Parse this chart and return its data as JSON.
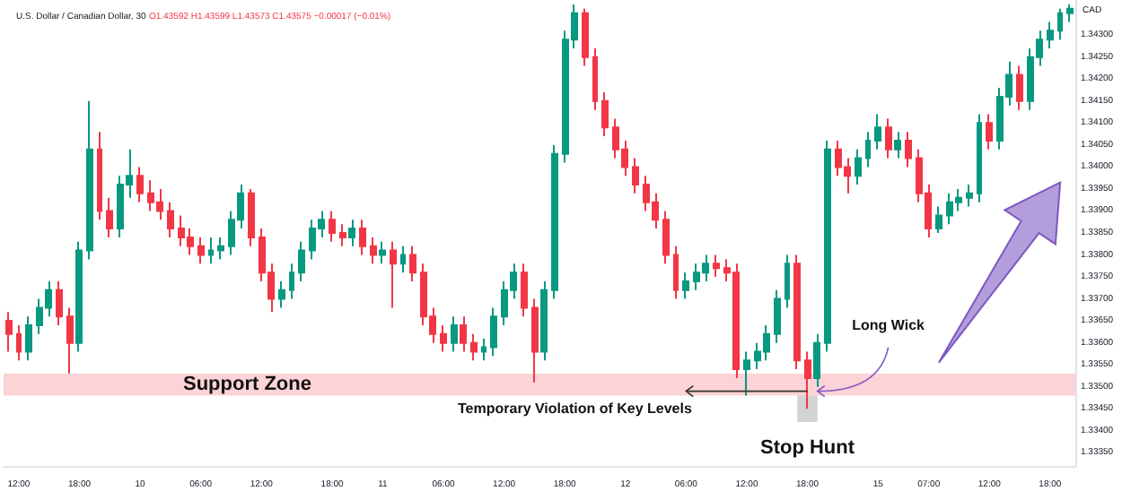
{
  "chart_data": {
    "type": "candlestick",
    "title": "U.S. Dollar / Canadian Dollar, 30",
    "subtitle": "O1.43592 H1.43599 L1.43573 C1.43575 −0.00017 (−0.01%)",
    "annotations": [
      "CAD",
      {
        "text": "Temporary Violation of Key Levels",
        "y": 1.3349
      },
      "Stop Hunt",
      "Long Wick"
    ],
    "categories": [
      null,
      "12:00",
      null,
      null,
      null,
      null,
      null,
      "18:00",
      null,
      null,
      null,
      null,
      null,
      "10",
      null,
      null,
      null,
      null,
      null,
      "06:00",
      null,
      null,
      null,
      null,
      null,
      "12:00",
      null,
      null,
      null,
      null,
      null,
      null,
      "18:00",
      null,
      null,
      null,
      null,
      "11",
      null,
      null,
      null,
      null,
      null,
      "06:00",
      null,
      null,
      null,
      null,
      null,
      "12:00",
      null,
      null,
      null,
      null,
      null,
      "18:00",
      null,
      null,
      null,
      null,
      null,
      "12",
      null,
      null,
      null,
      null,
      null,
      "06:00",
      null,
      null,
      null,
      null,
      null,
      "12:00",
      null,
      null,
      null,
      null,
      null,
      "18:00",
      null,
      null,
      null,
      null,
      null,
      null,
      "15",
      null,
      null,
      null,
      null,
      "07:00",
      null,
      null,
      null,
      null,
      null,
      "12:00",
      null,
      null,
      null,
      null,
      null,
      "18:00",
      null,
      null
    ],
    "ohlc": [
      [
        1.3365,
        1.3367,
        1.3358,
        1.3362
      ],
      [
        1.3362,
        1.3364,
        1.3356,
        1.3358
      ],
      [
        1.3358,
        1.3366,
        1.3356,
        1.3364
      ],
      [
        1.3364,
        1.337,
        1.3362,
        1.3368
      ],
      [
        1.3368,
        1.3374,
        1.3366,
        1.3372
      ],
      [
        1.3372,
        1.3374,
        1.3364,
        1.3366
      ],
      [
        1.3366,
        1.3368,
        1.3353,
        1.336
      ],
      [
        1.336,
        1.3383,
        1.3358,
        1.3381
      ],
      [
        1.3381,
        1.3415,
        1.3379,
        1.3404
      ],
      [
        1.3404,
        1.3408,
        1.3388,
        1.339
      ],
      [
        1.339,
        1.3393,
        1.3384,
        1.3386
      ],
      [
        1.3386,
        1.3398,
        1.3384,
        1.3396
      ],
      [
        1.3396,
        1.3404,
        1.3393,
        1.3398
      ],
      [
        1.3398,
        1.34,
        1.3392,
        1.3394
      ],
      [
        1.3394,
        1.3397,
        1.339,
        1.3392
      ],
      [
        1.3392,
        1.3395,
        1.3388,
        1.339
      ],
      [
        1.339,
        1.3392,
        1.3384,
        1.3386
      ],
      [
        1.3386,
        1.3389,
        1.3382,
        1.3384
      ],
      [
        1.3384,
        1.3386,
        1.338,
        1.3382
      ],
      [
        1.3382,
        1.3384,
        1.3378,
        1.338
      ],
      [
        1.338,
        1.3384,
        1.3378,
        1.3381
      ],
      [
        1.3381,
        1.3384,
        1.3379,
        1.3382
      ],
      [
        1.3382,
        1.339,
        1.338,
        1.3388
      ],
      [
        1.3388,
        1.3396,
        1.3386,
        1.3394
      ],
      [
        1.3394,
        1.3395,
        1.3382,
        1.3384
      ],
      [
        1.3384,
        1.3386,
        1.3374,
        1.3376
      ],
      [
        1.3376,
        1.3378,
        1.3367,
        1.337
      ],
      [
        1.337,
        1.3374,
        1.3368,
        1.3372
      ],
      [
        1.3372,
        1.3378,
        1.337,
        1.3376
      ],
      [
        1.3376,
        1.3383,
        1.3374,
        1.3381
      ],
      [
        1.3381,
        1.3388,
        1.3379,
        1.3386
      ],
      [
        1.3386,
        1.339,
        1.3384,
        1.3388
      ],
      [
        1.3388,
        1.339,
        1.3383,
        1.3385
      ],
      [
        1.3385,
        1.3387,
        1.3382,
        1.3384
      ],
      [
        1.3384,
        1.3388,
        1.3382,
        1.3386
      ],
      [
        1.3386,
        1.3388,
        1.338,
        1.3382
      ],
      [
        1.3382,
        1.3384,
        1.3378,
        1.338
      ],
      [
        1.338,
        1.3383,
        1.3378,
        1.3381
      ],
      [
        1.3381,
        1.3383,
        1.3368,
        1.3378
      ],
      [
        1.3378,
        1.3382,
        1.3376,
        1.338
      ],
      [
        1.338,
        1.3382,
        1.3374,
        1.3376
      ],
      [
        1.3376,
        1.3378,
        1.3364,
        1.3366
      ],
      [
        1.3366,
        1.3368,
        1.336,
        1.3362
      ],
      [
        1.3362,
        1.3364,
        1.3358,
        1.336
      ],
      [
        1.336,
        1.3366,
        1.3358,
        1.3364
      ],
      [
        1.3364,
        1.3366,
        1.3358,
        1.336
      ],
      [
        1.336,
        1.3362,
        1.3356,
        1.3358
      ],
      [
        1.3358,
        1.3361,
        1.3356,
        1.3359
      ],
      [
        1.3359,
        1.3368,
        1.3357,
        1.3366
      ],
      [
        1.3366,
        1.3374,
        1.3364,
        1.3372
      ],
      [
        1.3372,
        1.3378,
        1.337,
        1.3376
      ],
      [
        1.3376,
        1.3378,
        1.3366,
        1.3368
      ],
      [
        1.3368,
        1.337,
        1.3351,
        1.3358
      ],
      [
        1.3358,
        1.3374,
        1.3356,
        1.3372
      ],
      [
        1.3372,
        1.3405,
        1.337,
        1.3403
      ],
      [
        1.3403,
        1.3431,
        1.3401,
        1.3429
      ],
      [
        1.3429,
        1.3437,
        1.3427,
        1.3435
      ],
      [
        1.3435,
        1.3436,
        1.3423,
        1.3425
      ],
      [
        1.3425,
        1.3427,
        1.3413,
        1.3415
      ],
      [
        1.3415,
        1.3417,
        1.3407,
        1.3409
      ],
      [
        1.3409,
        1.3411,
        1.3402,
        1.3404
      ],
      [
        1.3404,
        1.3406,
        1.3398,
        1.34
      ],
      [
        1.34,
        1.3402,
        1.3394,
        1.3396
      ],
      [
        1.3396,
        1.3398,
        1.339,
        1.3392
      ],
      [
        1.3392,
        1.3394,
        1.3386,
        1.3388
      ],
      [
        1.3388,
        1.339,
        1.3378,
        1.338
      ],
      [
        1.338,
        1.3382,
        1.337,
        1.3372
      ],
      [
        1.3372,
        1.3376,
        1.337,
        1.3374
      ],
      [
        1.3374,
        1.3378,
        1.3372,
        1.3376
      ],
      [
        1.3376,
        1.338,
        1.3374,
        1.3378
      ],
      [
        1.3378,
        1.338,
        1.3375,
        1.3377
      ],
      [
        1.3377,
        1.3379,
        1.3374,
        1.3376
      ],
      [
        1.3376,
        1.3378,
        1.3352,
        1.3354
      ],
      [
        1.3354,
        1.3358,
        1.3348,
        1.3356
      ],
      [
        1.3356,
        1.336,
        1.3354,
        1.3358
      ],
      [
        1.3358,
        1.3364,
        1.3356,
        1.3362
      ],
      [
        1.3362,
        1.3372,
        1.336,
        1.337
      ],
      [
        1.337,
        1.338,
        1.3368,
        1.3378
      ],
      [
        1.3378,
        1.338,
        1.3354,
        1.3356
      ],
      [
        1.3356,
        1.3358,
        1.3345,
        1.3352
      ],
      [
        1.3352,
        1.3362,
        1.335,
        1.336
      ],
      [
        1.336,
        1.3406,
        1.3358,
        1.3404
      ],
      [
        1.3404,
        1.3406,
        1.3398,
        1.34
      ],
      [
        1.34,
        1.3402,
        1.3394,
        1.3398
      ],
      [
        1.3398,
        1.3404,
        1.3396,
        1.3402
      ],
      [
        1.3402,
        1.3408,
        1.34,
        1.3406
      ],
      [
        1.3406,
        1.3412,
        1.3404,
        1.3409
      ],
      [
        1.3409,
        1.3411,
        1.3402,
        1.3404
      ],
      [
        1.3404,
        1.3408,
        1.3402,
        1.3406
      ],
      [
        1.3406,
        1.3408,
        1.34,
        1.3402
      ],
      [
        1.3402,
        1.3404,
        1.3392,
        1.3394
      ],
      [
        1.3394,
        1.3396,
        1.3384,
        1.3386
      ],
      [
        1.3386,
        1.3391,
        1.3385,
        1.3389
      ],
      [
        1.3389,
        1.3394,
        1.3387,
        1.3392
      ],
      [
        1.3392,
        1.3395,
        1.339,
        1.3393
      ],
      [
        1.3393,
        1.3396,
        1.3391,
        1.3394
      ],
      [
        1.3394,
        1.3412,
        1.3392,
        1.341
      ],
      [
        1.341,
        1.3412,
        1.3404,
        1.3406
      ],
      [
        1.3406,
        1.3418,
        1.3404,
        1.3416
      ],
      [
        1.3416,
        1.3424,
        1.3414,
        1.3421
      ],
      [
        1.3421,
        1.3423,
        1.3413,
        1.3415
      ],
      [
        1.3415,
        1.3427,
        1.3413,
        1.3425
      ],
      [
        1.3425,
        1.3431,
        1.3423,
        1.3429
      ],
      [
        1.3429,
        1.3433,
        1.3427,
        1.3431
      ],
      [
        1.3431,
        1.3436,
        1.3429,
        1.3435
      ],
      [
        1.3435,
        1.3437,
        1.3433,
        1.3436
      ]
    ],
    "colors": [
      "#f23645",
      "#f23645",
      "#089981",
      "#089981",
      "#089981",
      "#f23645",
      "#f23645",
      "#089981",
      "#089981",
      "#f23645",
      "#f23645",
      "#089981",
      "#089981",
      "#f23645",
      "#f23645",
      "#f23645",
      "#f23645",
      "#f23645",
      "#f23645",
      "#f23645",
      "#089981",
      "#089981",
      "#089981",
      "#089981",
      "#f23645",
      "#f23645",
      "#f23645",
      "#089981",
      "#089981",
      "#089981",
      "#089981",
      "#089981",
      "#f23645",
      "#f23645",
      "#089981",
      "#f23645",
      "#f23645",
      "#089981",
      "#f23645",
      "#089981",
      "#f23645",
      "#f23645",
      "#f23645",
      "#f23645",
      "#089981",
      "#f23645",
      "#f23645",
      "#089981",
      "#089981",
      "#089981",
      "#089981",
      "#f23645",
      "#f23645",
      "#089981",
      "#089981",
      "#089981",
      "#089981",
      "#f23645",
      "#f23645",
      "#f23645",
      "#f23645",
      "#f23645",
      "#f23645",
      "#f23645",
      "#f23645",
      "#f23645",
      "#f23645",
      "#089981",
      "#089981",
      "#089981",
      "#f23645",
      "#f23645",
      "#f23645",
      "#089981",
      "#089981",
      "#089981",
      "#089981",
      "#089981",
      "#f23645",
      "#f23645",
      "#089981",
      "#089981",
      "#f23645",
      "#f23645",
      "#089981",
      "#089981",
      "#089981",
      "#f23645",
      "#089981",
      "#f23645",
      "#f23645",
      "#f23645",
      "#089981",
      "#089981",
      "#089981",
      "#089981",
      "#089981",
      "#f23645",
      "#089981",
      "#089981",
      "#f23645",
      "#089981",
      "#089981",
      "#089981",
      "#089981",
      "#089981"
    ],
    "ylim": [
      1.3332,
      1.3438
    ],
    "yticks": [
      {
        "value": 1.3335,
        "label": "1.33350"
      },
      {
        "value": 1.334,
        "label": "1.33400"
      },
      {
        "value": 1.3345,
        "label": "1.33450"
      },
      {
        "value": 1.335,
        "label": "1.33500"
      },
      {
        "value": 1.3355,
        "label": "1.33550"
      },
      {
        "value": 1.336,
        "label": "1.33600"
      },
      {
        "value": 1.3365,
        "label": "1.33650"
      },
      {
        "value": 1.337,
        "label": "1.33700"
      },
      {
        "value": 1.3375,
        "label": "1.33750"
      },
      {
        "value": 1.338,
        "label": "1.33800"
      },
      {
        "value": 1.3385,
        "label": "1.33850"
      },
      {
        "value": 1.339,
        "label": "1.33900"
      },
      {
        "value": 1.3395,
        "label": "1.33950"
      },
      {
        "value": 1.34,
        "label": "1.34000"
      },
      {
        "value": 1.3405,
        "label": "1.34050"
      },
      {
        "value": 1.341,
        "label": "1.34100"
      },
      {
        "value": 1.3415,
        "label": "1.34150"
      },
      {
        "value": 1.342,
        "label": "1.34200"
      },
      {
        "value": 1.3425,
        "label": "1.34250"
      },
      {
        "value": 1.343,
        "label": "1.34300"
      }
    ],
    "bands": [
      {
        "axis": "y",
        "from": 1.3348,
        "to": 1.3353,
        "label": "Support Zone",
        "color": "#fcd3d6"
      }
    ],
    "grid": false
  }
}
